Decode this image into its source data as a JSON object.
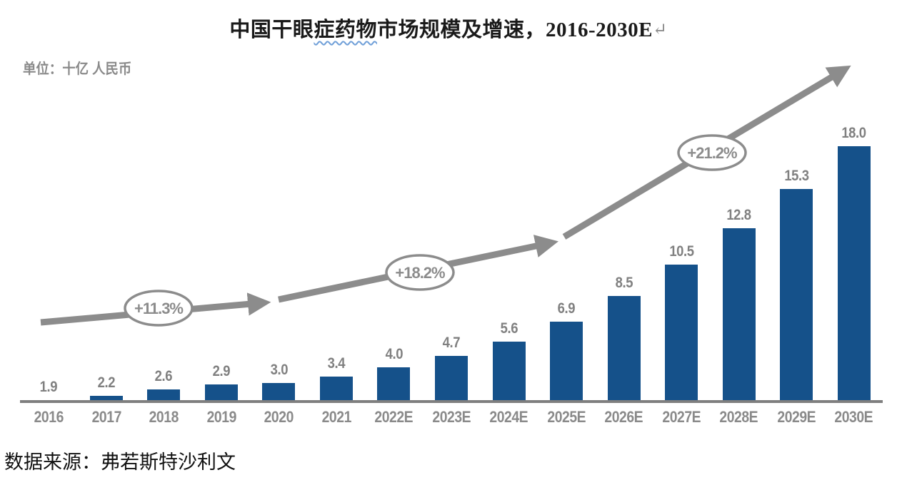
{
  "page": {
    "title": {
      "part1": "中国干眼",
      "wavy_part": "症药物",
      "part2": "市场规模及增速，",
      "range": "2016-2030E",
      "return_mark": "↵"
    },
    "unit_label": "单位：十亿 人民币",
    "source": "数据来源：弗若斯特沙利文"
  },
  "colors": {
    "bar": "#15518A",
    "axis": "#7F7F7F",
    "arrow": "#8C8C8C",
    "gray_text": "#8A8A8A",
    "wavy_underline": "#6F9FD8"
  },
  "chart_data": {
    "type": "bar",
    "title": "中国干眼症药物市场规模及增速，2016-2030E",
    "unit": "十亿 人民币",
    "categories": [
      "2016",
      "2017",
      "2018",
      "2019",
      "2020",
      "2021",
      "2022E",
      "2023E",
      "2024E",
      "2025E",
      "2026E",
      "2027E",
      "2028E",
      "2029E",
      "2030E"
    ],
    "values": [
      1.9,
      2.2,
      2.6,
      2.9,
      3.0,
      3.4,
      4.0,
      4.7,
      5.6,
      6.9,
      8.5,
      10.5,
      12.8,
      15.3,
      18.0
    ],
    "growth_labels": [
      "+11.3%",
      "+18.2%",
      "+21.2%"
    ],
    "source": "弗若斯特沙利文",
    "xlabel": "",
    "ylabel": "",
    "legend": "none",
    "grid": false,
    "y_axis_visible": false
  }
}
